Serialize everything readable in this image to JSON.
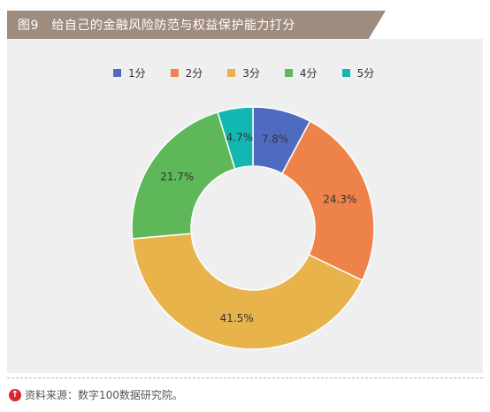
{
  "header": {
    "title": "图9　给自己的金融风险防范与权益保护能力打分"
  },
  "chart_data": {
    "type": "pie",
    "series": [
      {
        "name": "1分",
        "value": 7.8,
        "label": "7.8%",
        "color": "#4f6bbf"
      },
      {
        "name": "2分",
        "value": 24.3,
        "label": "24.3%",
        "color": "#ee834a"
      },
      {
        "name": "3分",
        "value": 41.5,
        "label": "41.5%",
        "color": "#e8b34b"
      },
      {
        "name": "4分",
        "value": 21.7,
        "label": "21.7%",
        "color": "#5eb85a"
      },
      {
        "name": "5分",
        "value": 4.7,
        "label": "4.7%",
        "color": "#12b7b1"
      }
    ],
    "legend_position": "top"
  },
  "footer": {
    "source": "资料来源：数字100数据研究院。"
  }
}
